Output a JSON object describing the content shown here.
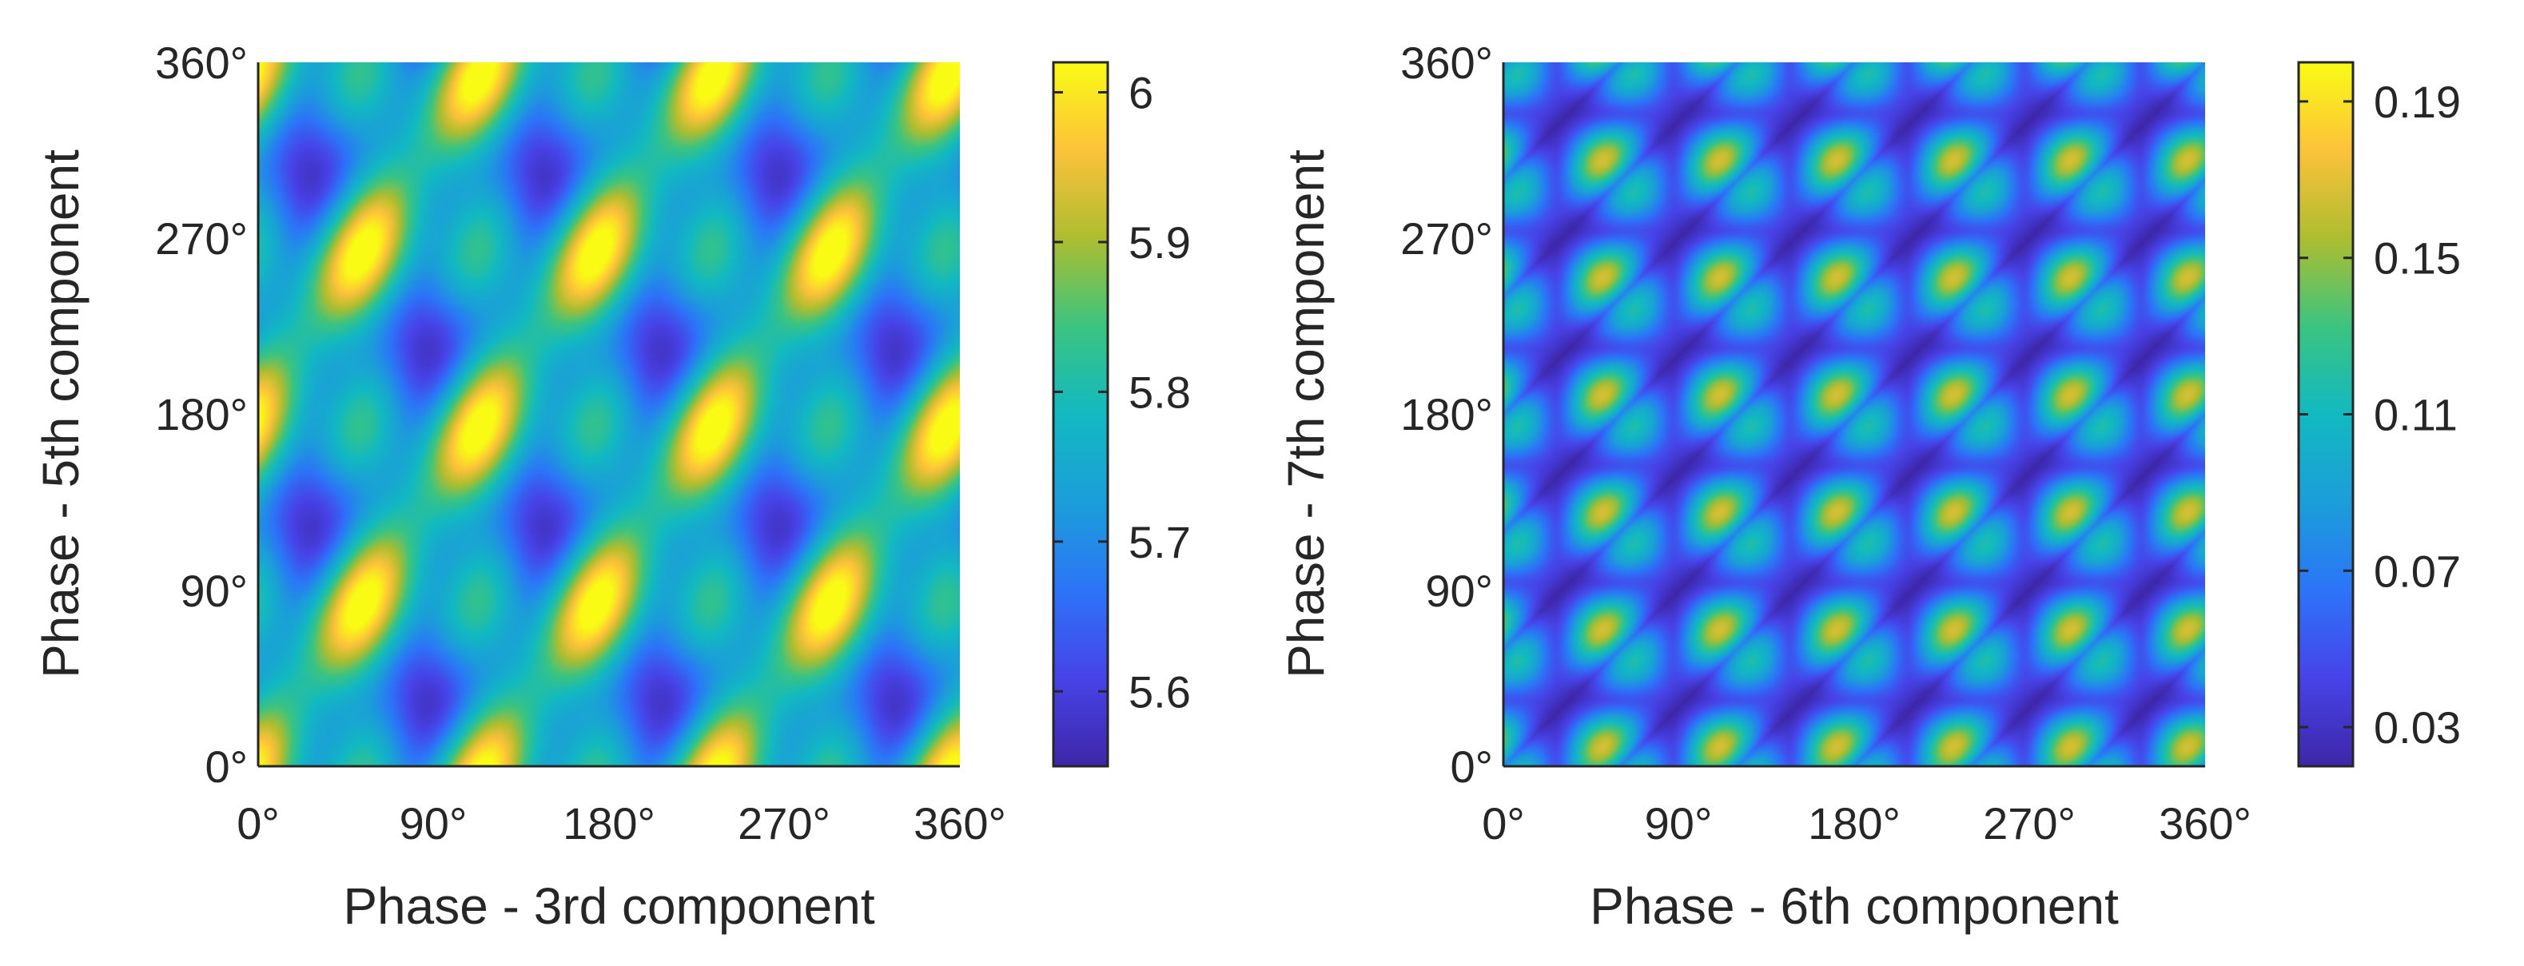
{
  "chart_data": [
    {
      "type": "heatmap",
      "panel": "left",
      "xlabel": "Phase - 3rd component",
      "ylabel": "Phase - 5th component",
      "x_ticks": [
        "0°",
        "90°",
        "180°",
        "270°",
        "360°"
      ],
      "y_ticks": [
        "0°",
        "90°",
        "180°",
        "270°",
        "360°"
      ],
      "x_range": [
        0,
        360
      ],
      "y_range": [
        0,
        360
      ],
      "colorbar": {
        "ticks": [
          "5.6",
          "5.7",
          "5.8",
          "5.9",
          "6"
        ],
        "tick_values": [
          5.6,
          5.7,
          5.8,
          5.9,
          6.0
        ],
        "range": [
          5.55,
          6.02
        ]
      },
      "pattern": {
        "description": "diagonal bands; maxima (yellow) and minima (dark blue) alternate",
        "harmonic_a": 3,
        "harmonic_b": 5,
        "mean": 5.78
      }
    },
    {
      "type": "heatmap",
      "panel": "right",
      "xlabel": "Phase - 6th component",
      "ylabel": "Phase - 7th component",
      "x_ticks": [
        "0°",
        "90°",
        "180°",
        "270°",
        "360°"
      ],
      "y_ticks": [
        "0°",
        "90°",
        "180°",
        "270°",
        "360°"
      ],
      "x_range": [
        0,
        360
      ],
      "y_range": [
        0,
        360
      ],
      "colorbar": {
        "ticks": [
          "0.03",
          "0.07",
          "0.11",
          "0.15",
          "0.19"
        ],
        "tick_values": [
          0.03,
          0.07,
          0.11,
          0.15,
          0.19
        ],
        "range": [
          0.02,
          0.2
        ]
      },
      "pattern": {
        "description": "lattice of yellow peaks separated by dark diagonal valleys",
        "harmonic_a": 6,
        "harmonic_b": 7
      }
    }
  ]
}
